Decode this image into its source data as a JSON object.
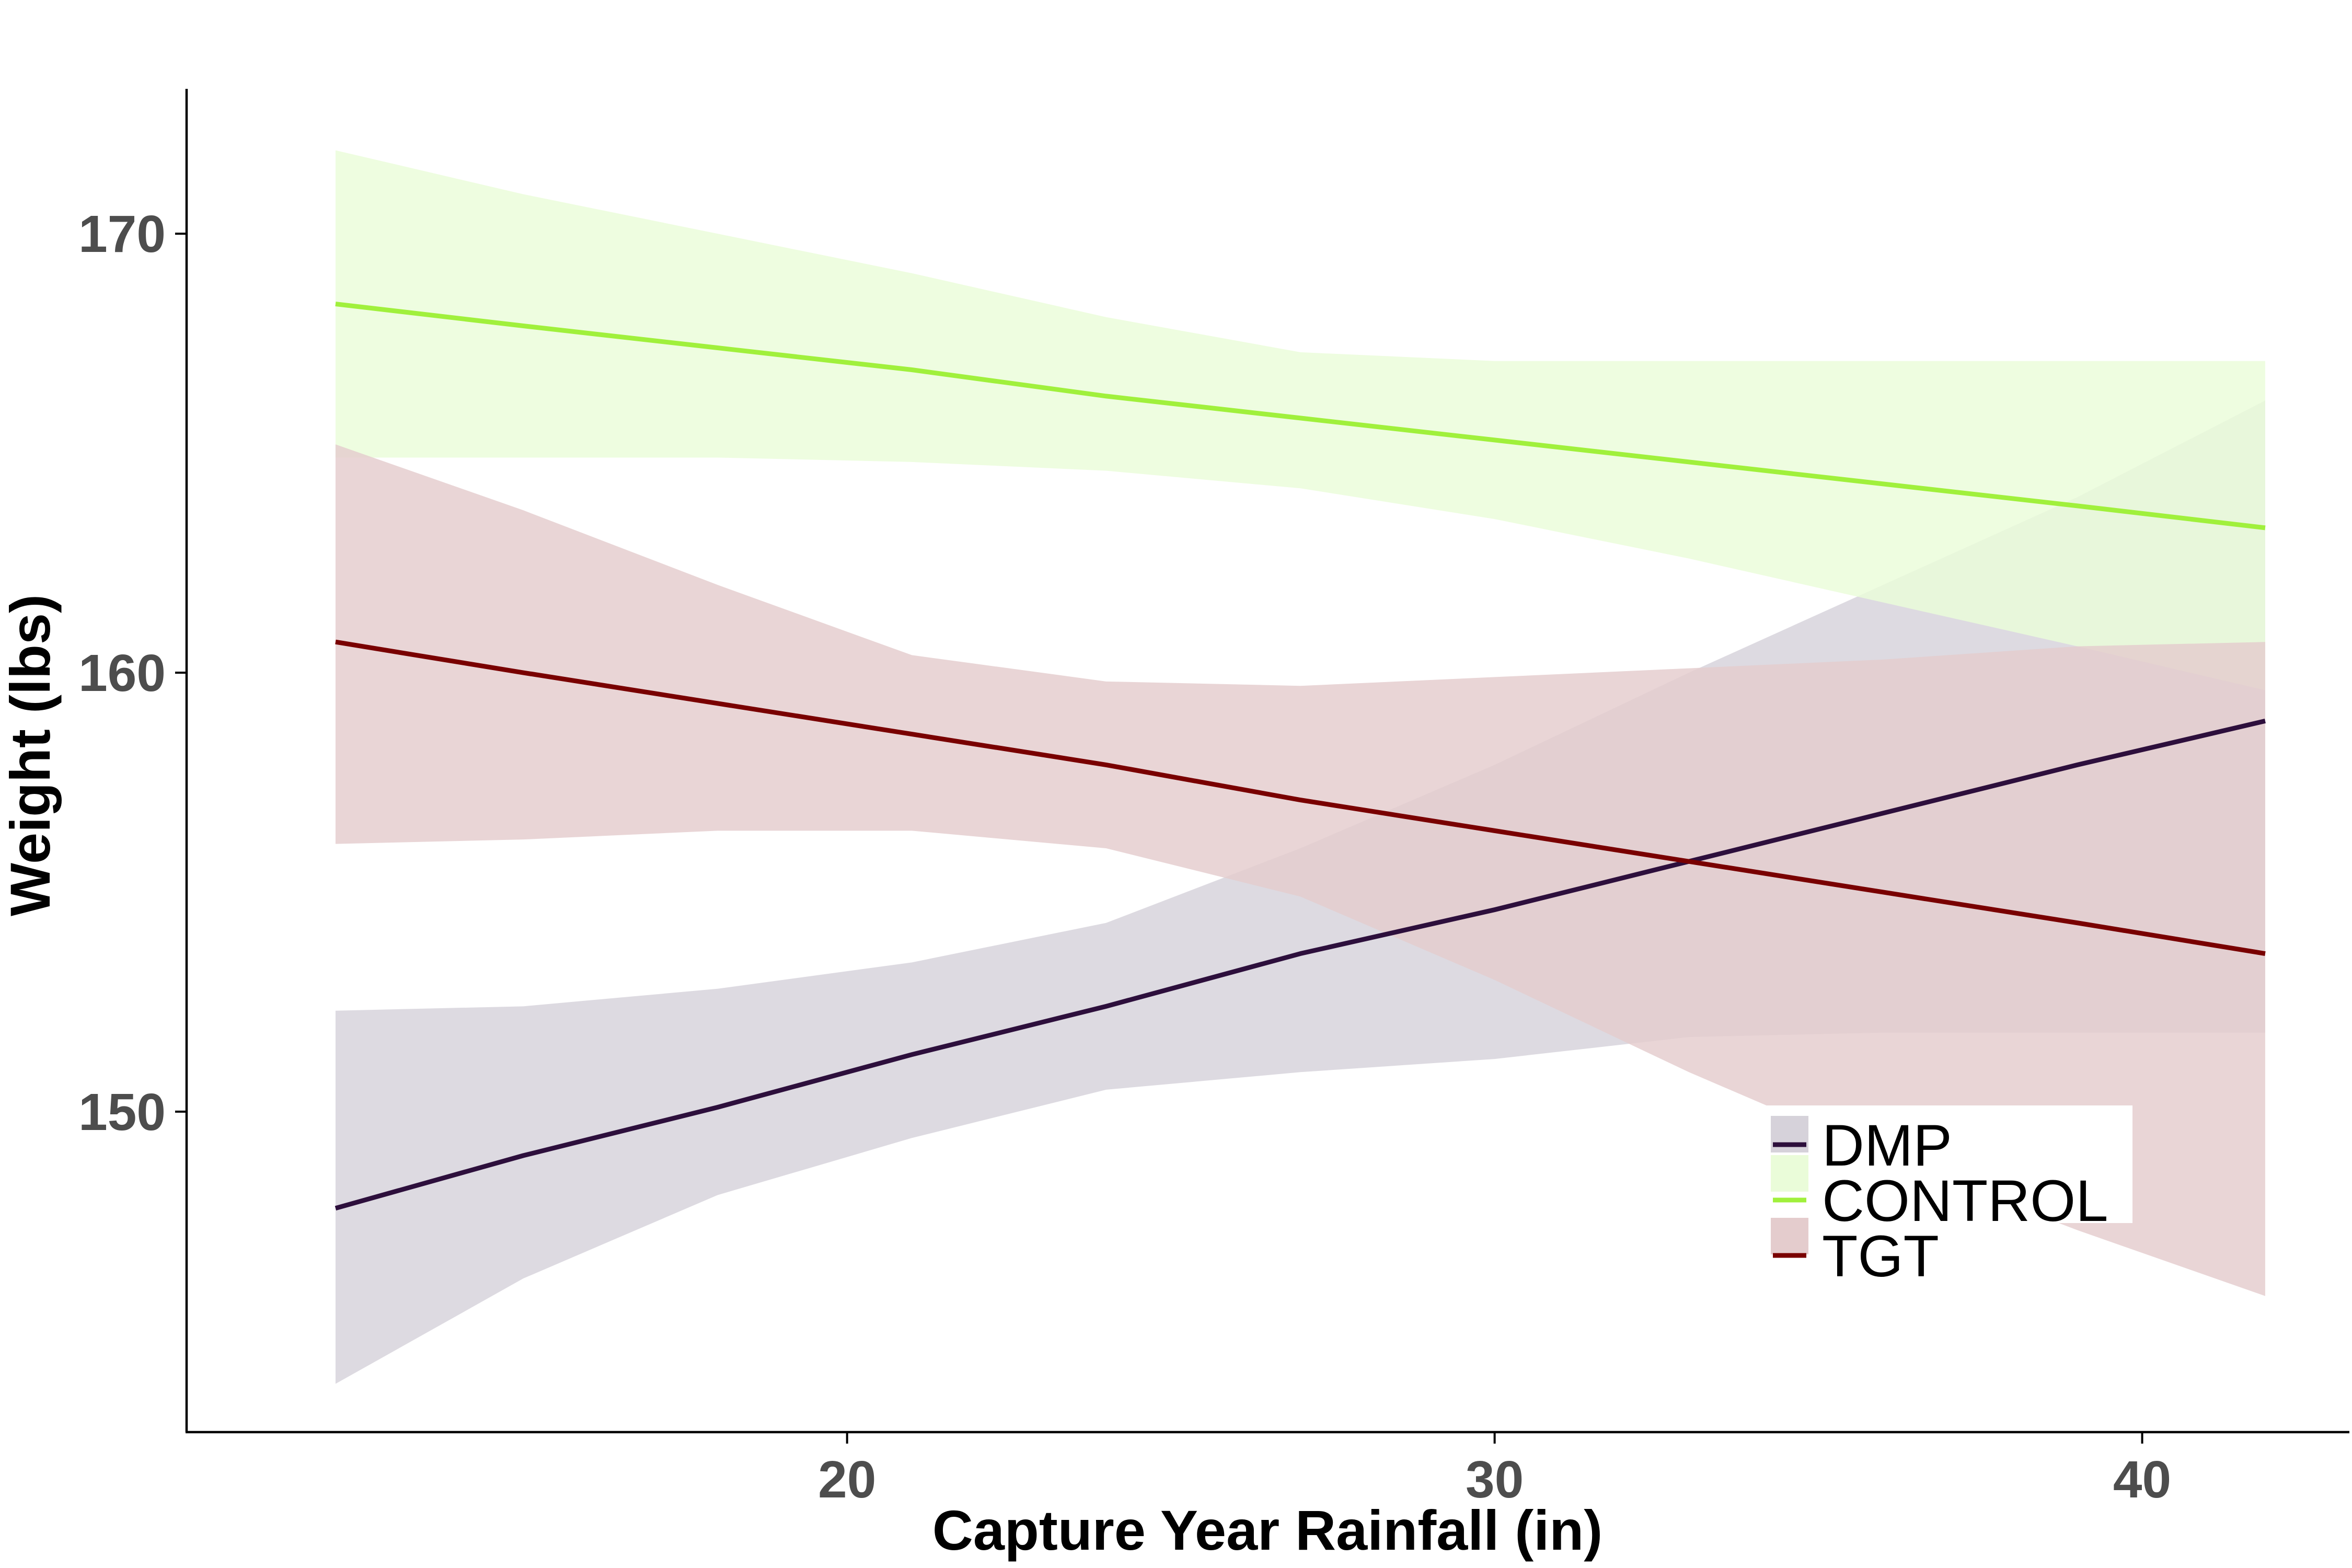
{
  "chart_data": {
    "type": "line",
    "xlabel": "Capture Year Rainfall (in)",
    "ylabel": "Weight (lbs)",
    "xlim": [
      9.8,
      43.2
    ],
    "ylim": [
      142.7,
      173.3
    ],
    "xticks": [
      20,
      30,
      40
    ],
    "yticks": [
      150,
      160,
      170
    ],
    "xtick_labels": [
      "20",
      "30",
      "40"
    ],
    "ytick_labels": [
      "150",
      "160",
      "170"
    ],
    "grid": false,
    "legend_position": "bottom-right",
    "has_confidence_bands": true,
    "series": [
      {
        "name": "DMP",
        "color": "#2d0f3c",
        "band_color": "#d6d2da",
        "x": [
          12.1,
          15,
          18,
          21,
          24,
          27,
          30,
          33,
          36,
          39,
          41.9
        ],
        "y": [
          147.8,
          149.0,
          150.1,
          151.3,
          152.4,
          153.6,
          154.6,
          155.7,
          156.8,
          157.9,
          158.9
        ],
        "lower": [
          143.8,
          146.2,
          148.1,
          149.4,
          150.5,
          150.9,
          151.2,
          151.7,
          151.8,
          151.8,
          151.8
        ],
        "upper": [
          152.3,
          152.4,
          152.8,
          153.4,
          154.3,
          156.0,
          157.9,
          160.0,
          162.0,
          164.0,
          166.2
        ]
      },
      {
        "name": "CONTROL",
        "color": "#a0f03c",
        "band_color": "#eafcd9",
        "x": [
          12.1,
          15,
          18,
          21,
          24,
          27,
          30,
          33,
          36,
          39,
          41.9
        ],
        "y": [
          168.4,
          167.9,
          167.4,
          166.9,
          166.3,
          165.8,
          165.3,
          164.8,
          164.3,
          163.8,
          163.3
        ],
        "lower": [
          164.9,
          164.9,
          164.9,
          164.8,
          164.6,
          164.2,
          163.5,
          162.6,
          161.6,
          160.6,
          159.6
        ],
        "upper": [
          171.9,
          170.9,
          170.0,
          169.1,
          168.1,
          167.3,
          167.1,
          167.1,
          167.1,
          167.1,
          167.1
        ]
      },
      {
        "name": "TGT",
        "color": "#790000",
        "band_color": "#e4cccd",
        "x": [
          12.1,
          15,
          18,
          21,
          24,
          27,
          30,
          33,
          36,
          39,
          41.9
        ],
        "y": [
          160.7,
          160.0,
          159.3,
          158.6,
          157.9,
          157.1,
          156.4,
          155.7,
          155.0,
          154.3,
          153.6
        ],
        "lower": [
          156.1,
          156.2,
          156.4,
          156.4,
          156.0,
          154.9,
          153.0,
          150.9,
          149.0,
          147.3,
          145.8
        ],
        "upper": [
          165.2,
          163.7,
          162.0,
          160.4,
          159.8,
          159.7,
          159.9,
          160.1,
          160.3,
          160.6,
          160.7
        ]
      }
    ]
  }
}
